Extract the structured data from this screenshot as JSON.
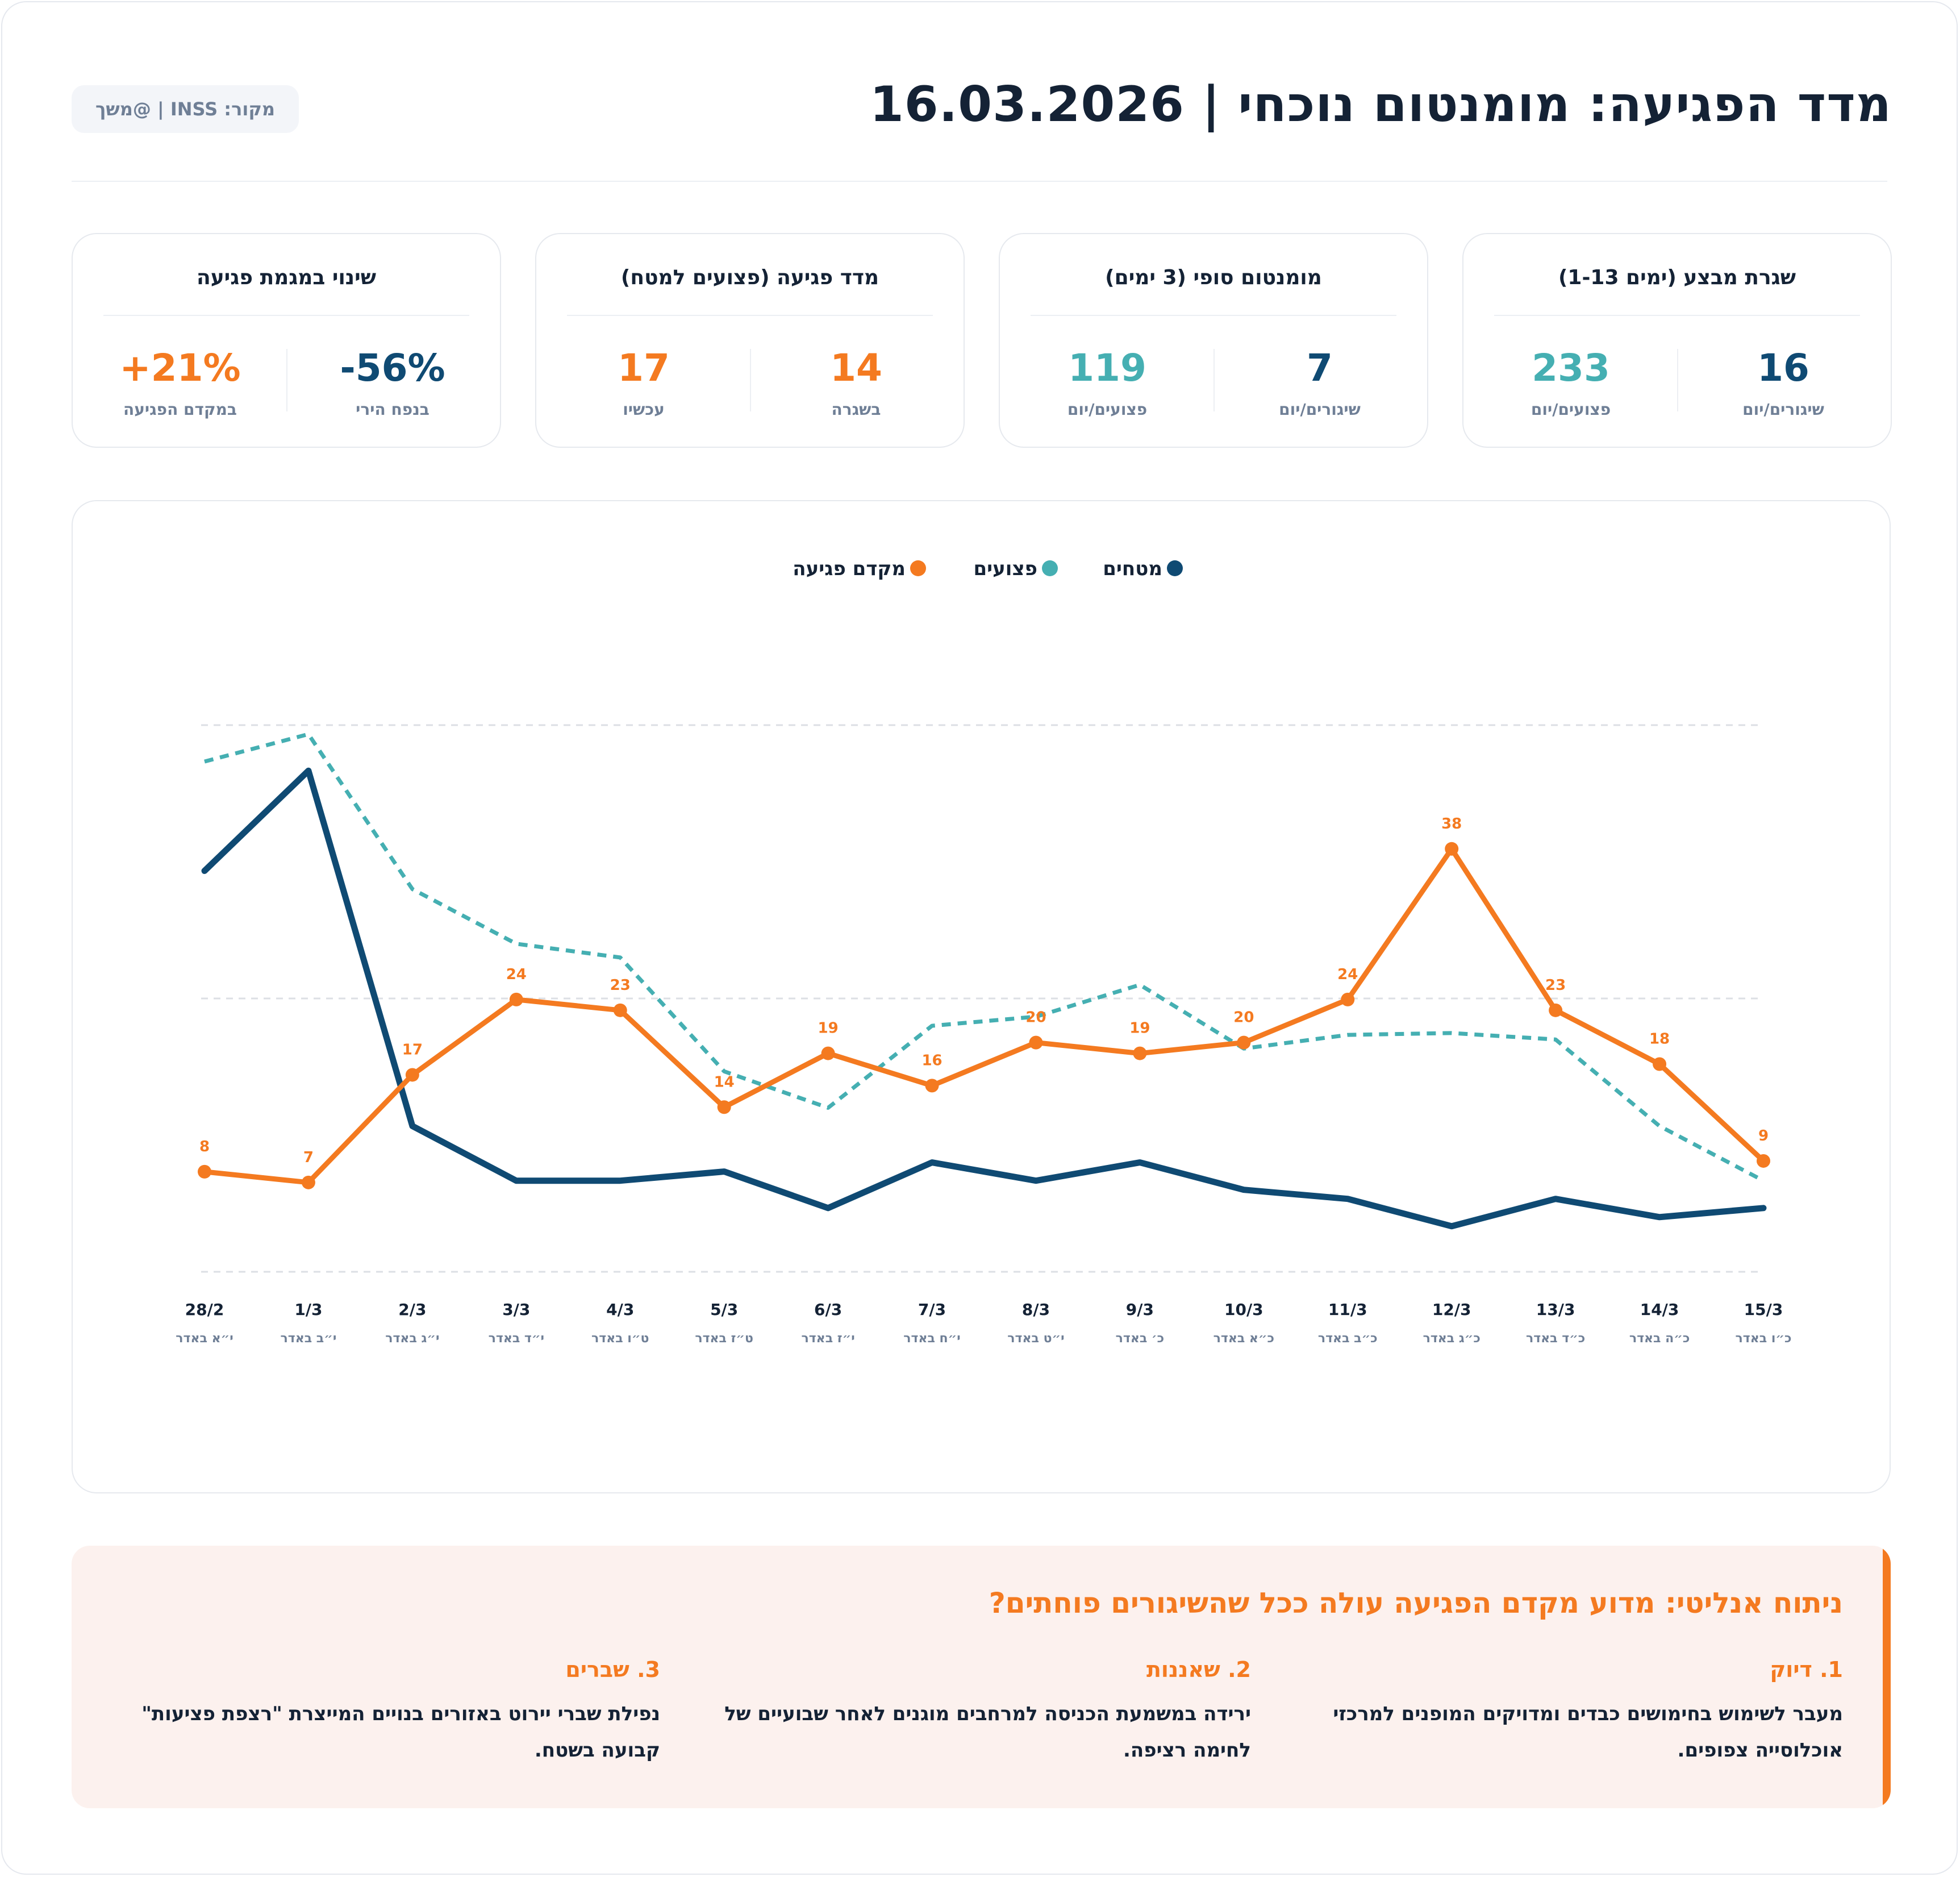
{
  "header": {
    "title": "מדד הפגיעה: מומנטום נוכחי | 16.03.2026",
    "source": "מקור: INSS | @משך"
  },
  "cards": [
    {
      "title": "שגרת מבצע (ימים 1-13)",
      "metrics": [
        {
          "value": "16",
          "label": "שיגורים/יום"
        },
        {
          "value": "233",
          "label": "פצועים/יום"
        }
      ]
    },
    {
      "title": "מומנטום סופי (3 ימים)",
      "metrics": [
        {
          "value": "7",
          "label": "שיגורים/יום"
        },
        {
          "value": "119",
          "label": "פצועים/יום"
        }
      ]
    },
    {
      "title": "מדד פגיעה (פצועים למטח)",
      "metrics": [
        {
          "value": "14",
          "label": "בשגרה"
        },
        {
          "value": "17",
          "label": "עכשיו"
        }
      ]
    },
    {
      "title": "שינוי במגמת פגיעה",
      "metrics": [
        {
          "value": "-56%",
          "label": "בנפח הירי"
        },
        {
          "value": "+21%",
          "label": "במקדם הפגיעה"
        }
      ]
    }
  ],
  "colors": {
    "navy": "#0f4a73",
    "teal": "#45afb2",
    "orange": "#f47a20",
    "grid": "#dcdfe4"
  },
  "chart_data": {
    "type": "line",
    "title": "",
    "xlabel": "",
    "ylabel": "",
    "grid": true,
    "legend_position": "top-center",
    "categories": [
      "28/2",
      "1/3",
      "2/3",
      "3/3",
      "4/3",
      "5/3",
      "6/3",
      "7/3",
      "8/3",
      "9/3",
      "10/3",
      "11/3",
      "12/3",
      "13/3",
      "14/3",
      "15/3"
    ],
    "hebrew_dates": [
      "י״א באדר",
      "י״ב באדר",
      "י״ג באדר",
      "י״ד באדר",
      "ט״ו באדר",
      "ט״ז באדר",
      "י״ז באדר",
      "י״ח באדר",
      "י״ט באדר",
      "כ׳ באדר",
      "כ״א באדר",
      "כ״ב באדר",
      "כ״ג באדר",
      "כ״ד באדר",
      "כ״ה באדר",
      "כ״ו באדר"
    ],
    "series": [
      {
        "name": "מטחים",
        "axis": "left",
        "style": "solid",
        "values": [
          44,
          55,
          16,
          10,
          10,
          11,
          7,
          12,
          10,
          12,
          9,
          8,
          5,
          8,
          6,
          7
        ]
      },
      {
        "name": "פצועים",
        "axis": "left",
        "style": "dashed",
        "values": [
          56,
          59,
          42,
          36,
          34.5,
          22,
          18,
          27,
          28,
          31.5,
          24.5,
          26,
          26.2,
          25.5,
          16,
          10
        ]
      },
      {
        "name": "מקדם פגיעה",
        "axis": "right",
        "style": "solid",
        "show_labels": true,
        "values": [
          8,
          7,
          17,
          24,
          23,
          14,
          19,
          16,
          20,
          19,
          20,
          24,
          38,
          23,
          18,
          9
        ]
      }
    ],
    "left_ylim": [
      0,
      60
    ],
    "right_ylim": [
      -1.3,
      49.5
    ]
  },
  "analysis": {
    "title": "ניתוח אנליטי: מדוע מקדם הפגיעה עולה ככל שהשיגורים פוחתים?",
    "items": [
      {
        "heading": "1. דיוק",
        "body": "מעבר לשימוש בחימושים כבדים ומדויקים המופנים למרכזי אוכלוסייה צפופים."
      },
      {
        "heading": "2. שאננות",
        "body": "ירידה במשמעת הכניסה למרחבים מוגנים לאחר שבועיים של לחימה רציפה."
      },
      {
        "heading": "3. שברים",
        "body": "נפילת שברי יירוט באזורים בנויים המייצרת \"רצפת פציעות\" קבועה בשטח."
      }
    ]
  }
}
